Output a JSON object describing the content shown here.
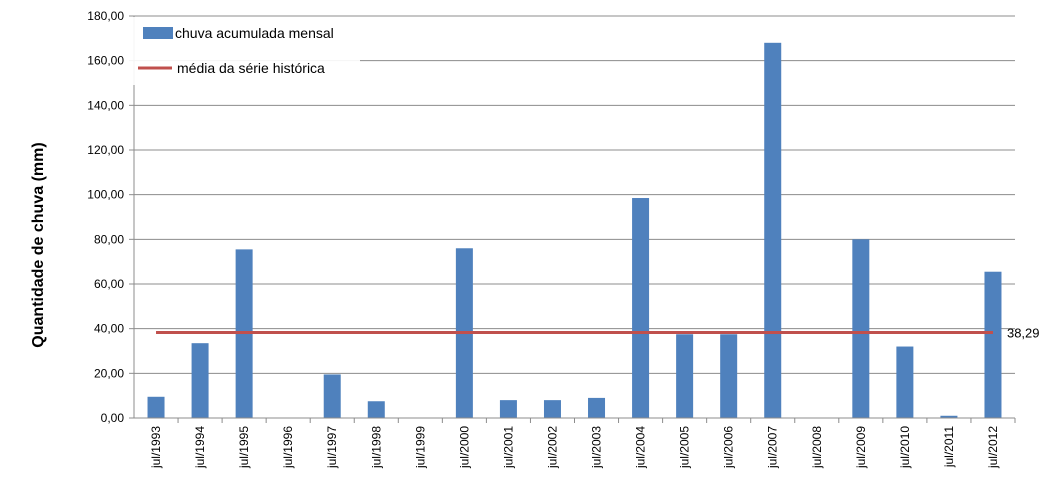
{
  "chart_data": {
    "type": "bar",
    "title": "",
    "xlabel": "",
    "ylabel": "Quantidade de chuva (mm)",
    "ylim": [
      0,
      180
    ],
    "y_ticks": [
      "0,00",
      "20,00",
      "40,00",
      "60,00",
      "80,00",
      "100,00",
      "120,00",
      "140,00",
      "160,00",
      "180,00"
    ],
    "grid": true,
    "legend_position": "top-left",
    "categories": [
      "jul/1993",
      "jul/1994",
      "jul/1995",
      "jul/1996",
      "jul/1997",
      "jul/1998",
      "jul/1999",
      "jul/2000",
      "jul/2001",
      "jul/2002",
      "jul/2003",
      "jul/2004",
      "jul/2005",
      "jul/2006",
      "jul/2007",
      "jul/2008",
      "jul/2009",
      "jul/2010",
      "jul/2011",
      "jul/2012"
    ],
    "series": [
      {
        "name": "chuva acumulada mensal",
        "kind": "bar",
        "color": "#4F81BD",
        "values": [
          9.5,
          33.5,
          75.5,
          0,
          19.5,
          7.5,
          0,
          76,
          8,
          8,
          9,
          98.5,
          37.5,
          37.5,
          168,
          0,
          80,
          32,
          1,
          65.5
        ]
      },
      {
        "name": "média da série histórica",
        "kind": "line",
        "color": "#C0504D",
        "value": 38.29,
        "label": "38,29"
      }
    ]
  }
}
